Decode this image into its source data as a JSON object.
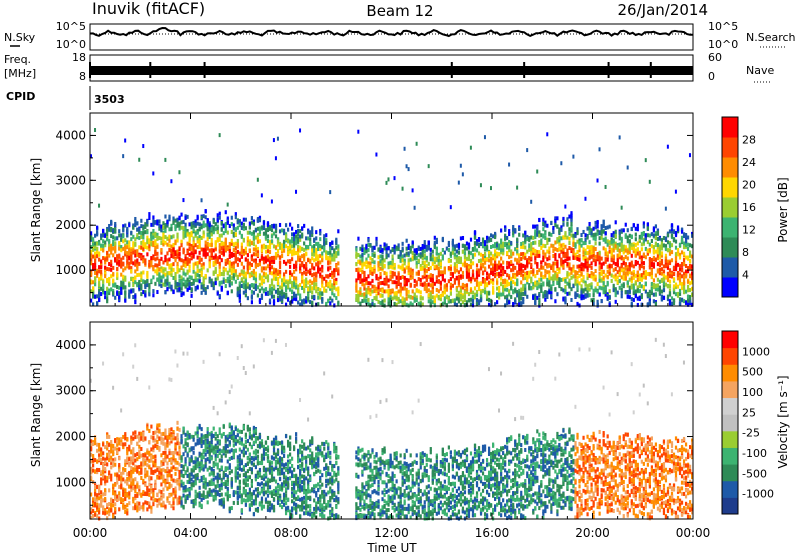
{
  "header": {
    "station": "Inuvik (fitACF)",
    "beam": "Beam 12",
    "date": "26/Jan/2014"
  },
  "noise_panel": {
    "left_label": "N.Sky",
    "right_label": "N.Search",
    "left_ticks": [
      "10^5",
      "10^0"
    ],
    "right_ticks": [
      "10^5",
      "10^0"
    ]
  },
  "freq_panel": {
    "left_label_1": "Freq.",
    "left_label_2": "[MHz]",
    "right_label": "Nave",
    "left_ticks": [
      "18",
      "8"
    ],
    "right_ticks": [
      "60",
      "0"
    ]
  },
  "cpid": {
    "label": "CPID",
    "value": "3503"
  },
  "colors": {
    "power": [
      "#0000ff",
      "#1e5aa8",
      "#2e8b57",
      "#3cb371",
      "#9acd32",
      "#ffd700",
      "#ff8c00",
      "#ff4500",
      "#ff0000"
    ],
    "velocity": [
      "#ff0000",
      "#ff4500",
      "#ff8c00",
      "#f4a460",
      "#d0d0d0",
      "#c0c0c0",
      "#9acd32",
      "#3cb371",
      "#2e8b57",
      "#1e5aa8",
      "#1e3c8c"
    ]
  },
  "chart_data": [
    {
      "type": "heatmap",
      "name": "power",
      "ylabel": "Slant Range [km]",
      "x_ticks": [
        "00:00",
        "04:00",
        "08:00",
        "12:00",
        "16:00",
        "20:00",
        "00:00"
      ],
      "y_ticks": [
        "1000",
        "2000",
        "3000",
        "4000"
      ],
      "ylim": [
        200,
        4500
      ],
      "colorbar_label": "Power [dB]",
      "colorbar_ticks": [
        "4",
        "8",
        "12",
        "16",
        "20",
        "24",
        "28"
      ],
      "colorbar_range": [
        0,
        30
      ]
    },
    {
      "type": "heatmap",
      "name": "velocity",
      "ylabel": "Slant Range [km]",
      "xlabel": "Time UT",
      "x_ticks": [
        "00:00",
        "04:00",
        "08:00",
        "12:00",
        "16:00",
        "20:00",
        "00:00"
      ],
      "y_ticks": [
        "1000",
        "2000",
        "3000",
        "4000"
      ],
      "ylim": [
        200,
        4500
      ],
      "colorbar_label": "Velocity [m s⁻¹]",
      "colorbar_ticks": [
        "1000",
        "500",
        "100",
        "25",
        "-25",
        "-100",
        "-500",
        "-1000"
      ]
    }
  ]
}
